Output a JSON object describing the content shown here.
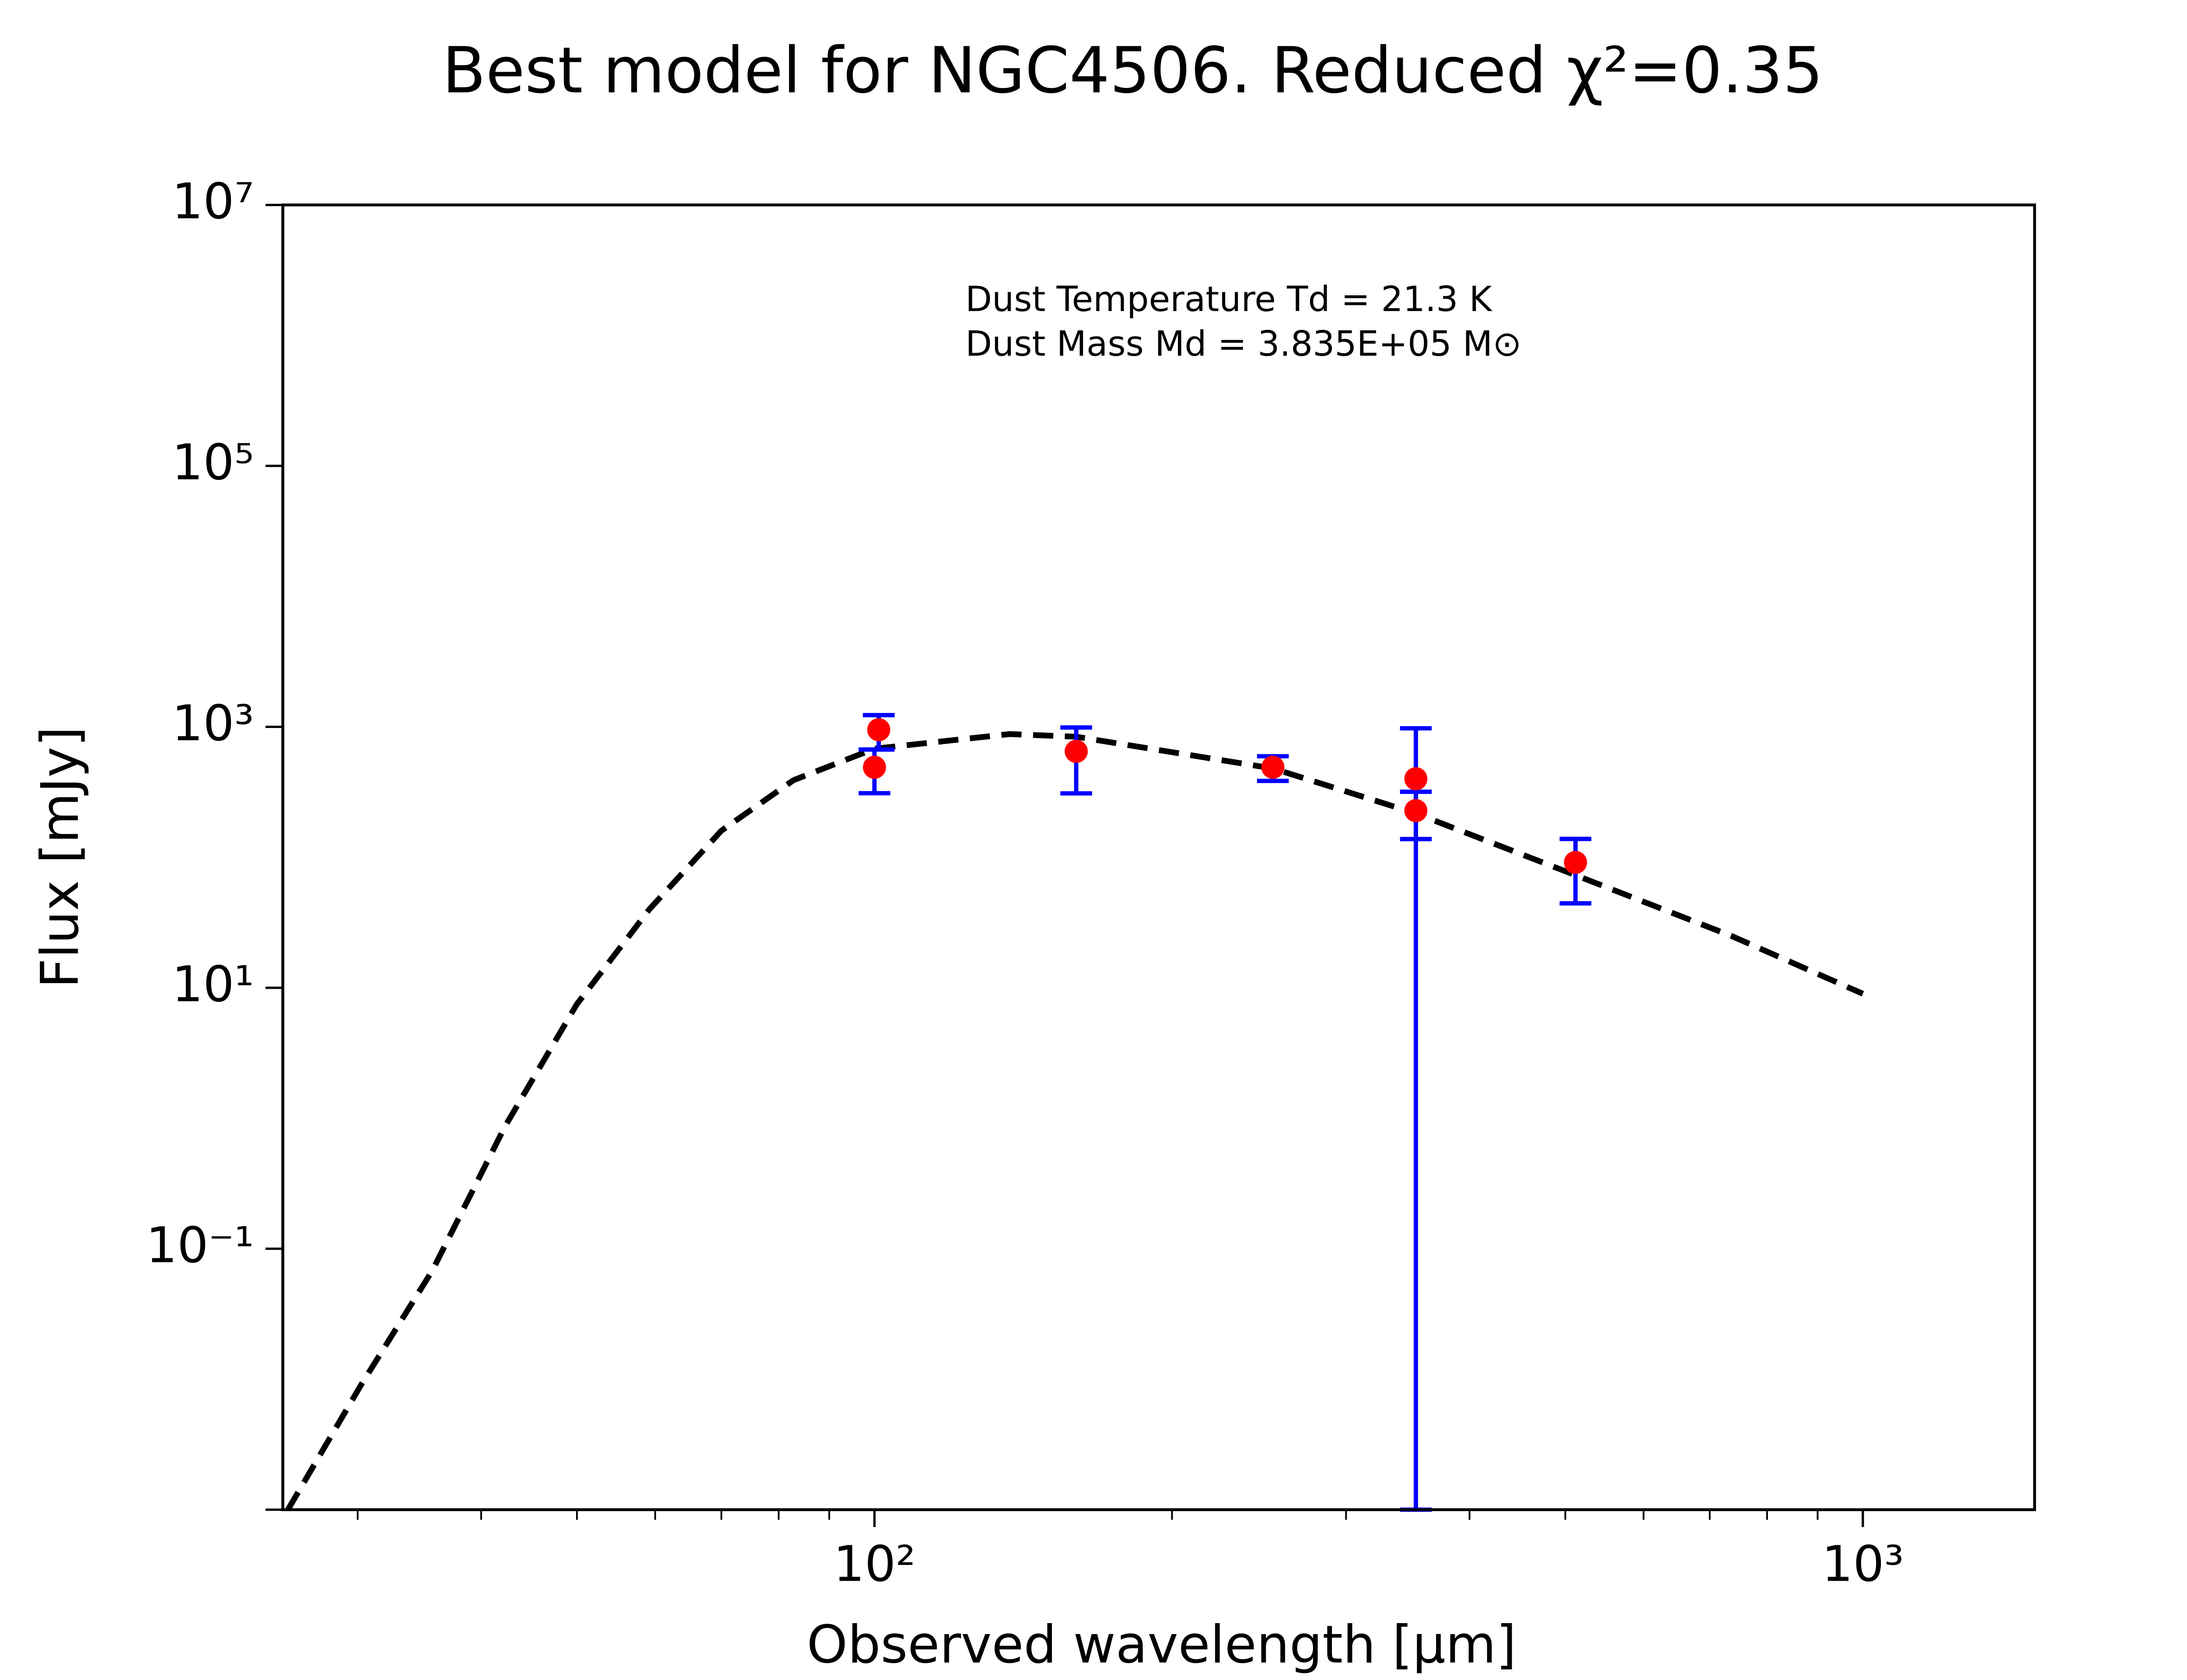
{
  "chart_data": {
    "type": "line",
    "title": "Best model for NGC4506. Reduced χ²=0.35",
    "xlabel": "Observed wavelength [μm]",
    "ylabel": "Flux [mJy]",
    "annotations": [
      "Dust Temperature Td = 21.3 K",
      "Dust Mass Md = 3.835E+05 M⊙"
    ],
    "xscale": "log",
    "yscale": "log",
    "xlim": [
      25.2,
      1492
    ],
    "ylim": [
      0.001,
      10000000
    ],
    "xticks": [
      {
        "value": 100,
        "label": "10²"
      },
      {
        "value": 1000,
        "label": "10³"
      }
    ],
    "xminorticks": [
      30,
      40,
      50,
      60,
      70,
      80,
      90,
      200,
      300,
      400,
      500,
      600,
      700,
      800,
      900
    ],
    "yticks": [
      {
        "value": 0.1,
        "label": "10⁻¹"
      },
      {
        "value": 10,
        "label": "10¹"
      },
      {
        "value": 1000,
        "label": "10³"
      },
      {
        "value": 100000,
        "label": "10⁵"
      },
      {
        "value": 10000000,
        "label": "10⁷"
      }
    ],
    "yminorticks": [
      0.001
    ],
    "series": [
      {
        "color": "#000000",
        "linestyle": "dashed",
        "x": [
          25.5,
          30.2,
          35.7,
          42.3,
          50,
          59.2,
          70,
          82.8,
          100,
          137,
          160,
          253,
          353,
          512,
          736,
          1000
        ],
        "values": [
          0.001,
          0.0089,
          0.068,
          0.87,
          7.5,
          40,
          160,
          390,
          680,
          880,
          840,
          480,
          217,
          73,
          25,
          9
        ]
      },
      {
        "color": "#ff0000",
        "ecolor": "#0000ff",
        "marker": "o",
        "x": [
          100,
          101,
          160,
          253,
          353,
          353,
          512
        ],
        "values": [
          490,
          950,
          649,
          490,
          400,
          228,
          91.4
        ],
        "yerr": [
          180,
          280,
          340,
          105,
          575,
          90,
          47
        ]
      }
    ]
  }
}
